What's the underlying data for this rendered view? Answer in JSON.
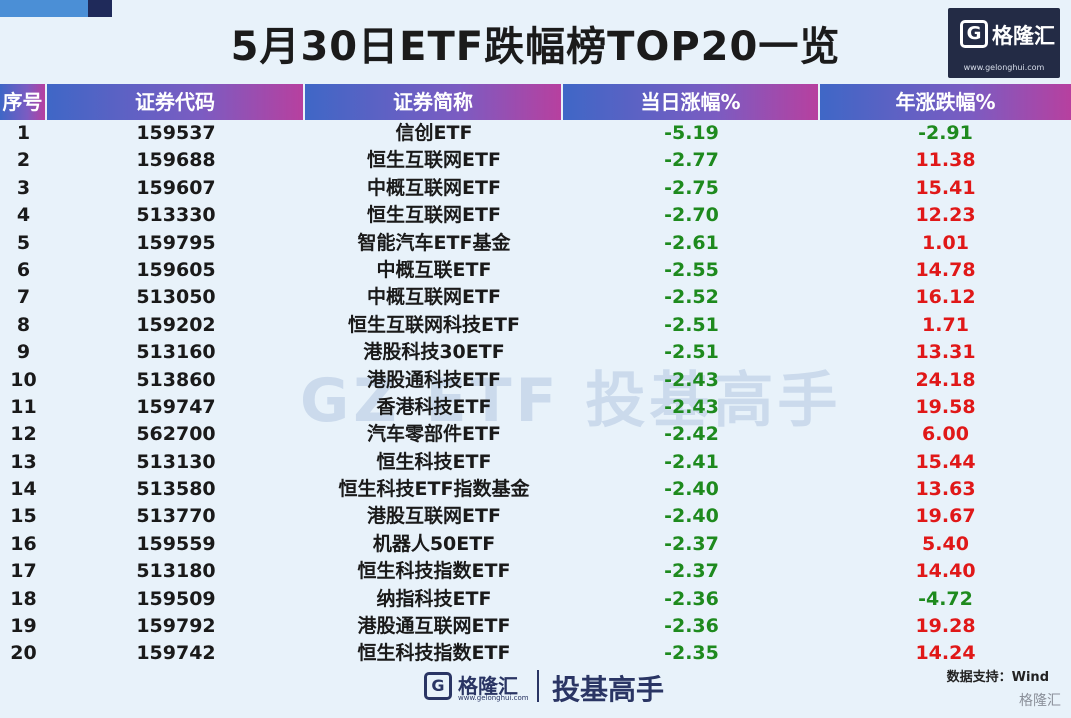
{
  "page": {
    "title": "5月30日ETF跌幅榜TOP20一览",
    "watermark": "GZ ETF 投基高手",
    "source": "数据支持：Wind"
  },
  "logo": {
    "mark": "G",
    "name": "格隆汇",
    "url": "www.gelonghui.com"
  },
  "footer": {
    "brand_mark": "G",
    "brand_name": "格隆汇",
    "brand_url": "www.gelonghui.com",
    "slogan": "投基高手",
    "corner_logo": "格隆汇"
  },
  "colors": {
    "negative": "#1e8a1e",
    "positive": "#e01818",
    "header_from": "#3f67c6",
    "header_to": "#b7409f"
  },
  "chart_data": {
    "type": "table",
    "columns": [
      "序号",
      "证券代码",
      "证券简称",
      "当日涨幅%",
      "年涨跌幅%"
    ],
    "rows": [
      [
        "1",
        "159537",
        "信创ETF",
        "-5.19",
        "-2.91"
      ],
      [
        "2",
        "159688",
        "恒生互联网ETF",
        "-2.77",
        "11.38"
      ],
      [
        "3",
        "159607",
        "中概互联网ETF",
        "-2.75",
        "15.41"
      ],
      [
        "4",
        "513330",
        "恒生互联网ETF",
        "-2.70",
        "12.23"
      ],
      [
        "5",
        "159795",
        "智能汽车ETF基金",
        "-2.61",
        "1.01"
      ],
      [
        "6",
        "159605",
        "中概互联ETF",
        "-2.55",
        "14.78"
      ],
      [
        "7",
        "513050",
        "中概互联网ETF",
        "-2.52",
        "16.12"
      ],
      [
        "8",
        "159202",
        "恒生互联网科技ETF",
        "-2.51",
        "1.71"
      ],
      [
        "9",
        "513160",
        "港股科技30ETF",
        "-2.51",
        "13.31"
      ],
      [
        "10",
        "513860",
        "港股通科技ETF",
        "-2.43",
        "24.18"
      ],
      [
        "11",
        "159747",
        "香港科技ETF",
        "-2.43",
        "19.58"
      ],
      [
        "12",
        "562700",
        "汽车零部件ETF",
        "-2.42",
        "6.00"
      ],
      [
        "13",
        "513130",
        "恒生科技ETF",
        "-2.41",
        "15.44"
      ],
      [
        "14",
        "513580",
        "恒生科技ETF指数基金",
        "-2.40",
        "13.63"
      ],
      [
        "15",
        "513770",
        "港股互联网ETF",
        "-2.40",
        "19.67"
      ],
      [
        "16",
        "159559",
        "机器人50ETF",
        "-2.37",
        "5.40"
      ],
      [
        "17",
        "513180",
        "恒生科技指数ETF",
        "-2.37",
        "14.40"
      ],
      [
        "18",
        "159509",
        "纳指科技ETF",
        "-2.36",
        "-4.72"
      ],
      [
        "19",
        "159792",
        "港股通互联网ETF",
        "-2.36",
        "19.28"
      ],
      [
        "20",
        "159742",
        "恒生科技指数ETF",
        "-2.35",
        "14.24"
      ]
    ]
  }
}
